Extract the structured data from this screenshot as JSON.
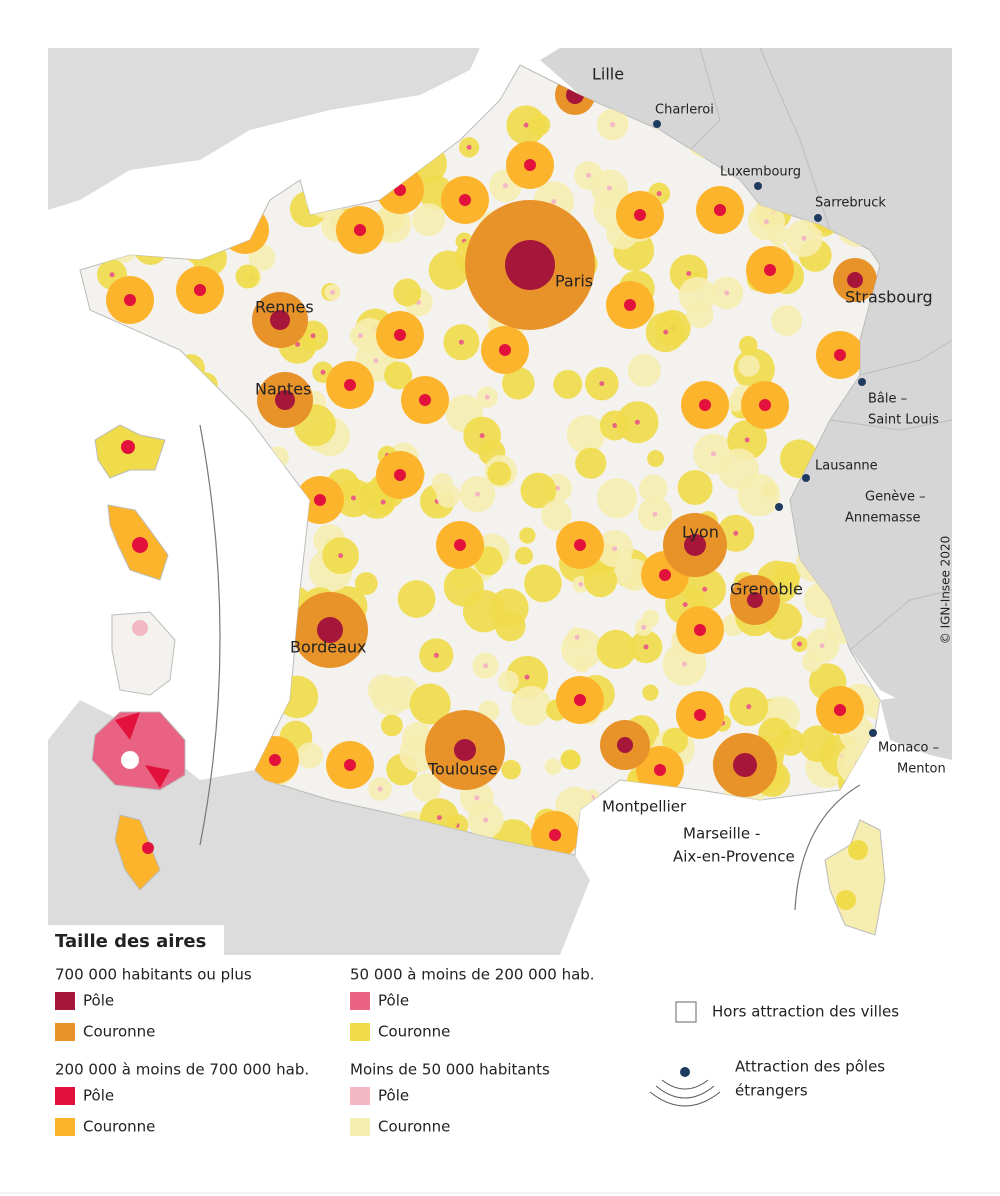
{
  "map": {
    "labels": [
      {
        "lines": [
          "Lille"
        ]
      },
      {
        "lines": [
          "Charleroi"
        ]
      },
      {
        "lines": [
          "Luxembourg"
        ]
      },
      {
        "lines": [
          "Sarrebruck"
        ]
      },
      {
        "lines": [
          "Paris"
        ]
      },
      {
        "lines": [
          "Strasbourg"
        ]
      },
      {
        "lines": [
          "Rennes"
        ]
      },
      {
        "lines": [
          "Nantes"
        ]
      },
      {
        "lines": [
          "Bâle –",
          "Saint Louis"
        ]
      },
      {
        "lines": [
          "Lausanne"
        ]
      },
      {
        "lines": [
          "Genève –",
          "Annemasse"
        ]
      },
      {
        "lines": [
          "Lyon"
        ]
      },
      {
        "lines": [
          "Grenoble"
        ]
      },
      {
        "lines": [
          "Bordeaux"
        ]
      },
      {
        "lines": [
          "Toulouse"
        ]
      },
      {
        "lines": [
          "Montpellier"
        ]
      },
      {
        "lines": [
          "Marseille -",
          "Aix-en-Provence"
        ]
      },
      {
        "lines": [
          "Monaco –",
          "Menton"
        ]
      }
    ],
    "credit": "© IGN-Insee 2020"
  },
  "legend": {
    "title": "Taille des aires",
    "groups": [
      {
        "heading": "700 000 habitants ou plus",
        "items": [
          {
            "label": "Pôle",
            "color": "#a6163a"
          },
          {
            "label": "Couronne",
            "color": "#e8922a"
          }
        ]
      },
      {
        "heading": "50 000 à moins de 200 000 hab.",
        "items": [
          {
            "label": "Pôle",
            "color": "#e96283"
          },
          {
            "label": "Couronne",
            "color": "#f0dc4a"
          }
        ]
      },
      {
        "heading": "200 000 à moins de 700 000 hab.",
        "items": [
          {
            "label": "Pôle",
            "color": "#e2123d"
          },
          {
            "label": "Couronne",
            "color": "#fdb42d"
          }
        ]
      },
      {
        "heading": "Moins de 50 000 habitants",
        "items": [
          {
            "label": "Pôle",
            "color": "#f4b8c5"
          },
          {
            "label": "Couronne",
            "color": "#f6edb0"
          }
        ]
      }
    ],
    "outside": {
      "label": "Hors attraction des villes",
      "color": "#f4f2ee"
    },
    "foreign": {
      "lines": [
        "Attraction des pôles",
        "étrangers"
      ]
    }
  }
}
